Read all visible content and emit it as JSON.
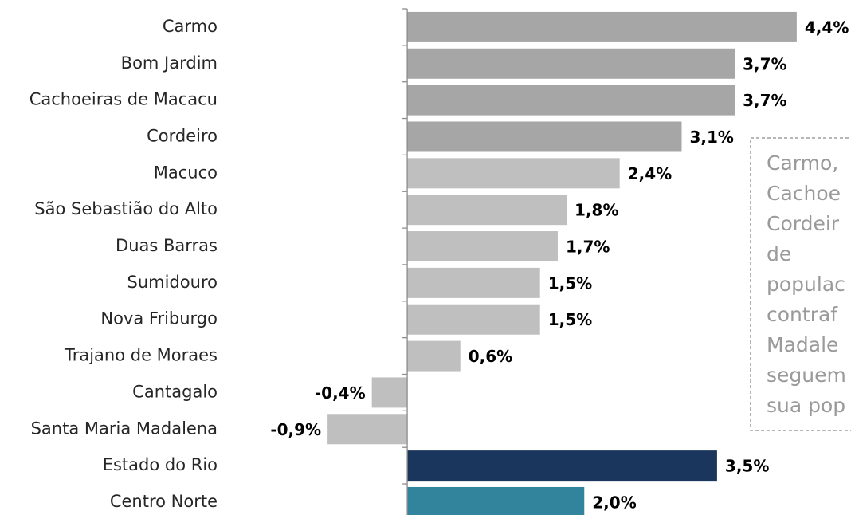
{
  "chart_data": {
    "type": "barh",
    "categories": [
      "Carmo",
      "Bom Jardim",
      "Cachoeiras de Macacu",
      "Cordeiro",
      "Macuco",
      "São Sebastião do Alto",
      "Duas Barras",
      "Sumidouro",
      "Nova Friburgo",
      "Trajano de Moraes",
      "Cantagalo",
      "Santa Maria Madalena",
      "Estado do Rio",
      "Centro Norte"
    ],
    "values": [
      4.4,
      3.7,
      3.7,
      3.1,
      2.4,
      1.8,
      1.7,
      1.5,
      1.5,
      0.6,
      -0.4,
      -0.9,
      3.5,
      2.0
    ],
    "value_labels": [
      "4,4%",
      "3,7%",
      "3,7%",
      "3,1%",
      "2,4%",
      "1,8%",
      "1,7%",
      "1,5%",
      "1,5%",
      "0,6%",
      "-0,4%",
      "-0,9%",
      "3,5%",
      "2,0%"
    ],
    "colors": [
      "#a6a6a6",
      "#a6a6a6",
      "#a6a6a6",
      "#a6a6a6",
      "#bfbfbf",
      "#bfbfbf",
      "#bfbfbf",
      "#bfbfbf",
      "#bfbfbf",
      "#bfbfbf",
      "#bfbfbf",
      "#bfbfbf",
      "#1b365d",
      "#31849b"
    ],
    "xlim": [
      -1.0,
      4.5
    ],
    "annotation": [
      "Carmo,",
      "Cachoe",
      "Cordeir",
      "de",
      "populac",
      "contraf",
      "Madale",
      "seguem",
      "sua pop"
    ]
  }
}
